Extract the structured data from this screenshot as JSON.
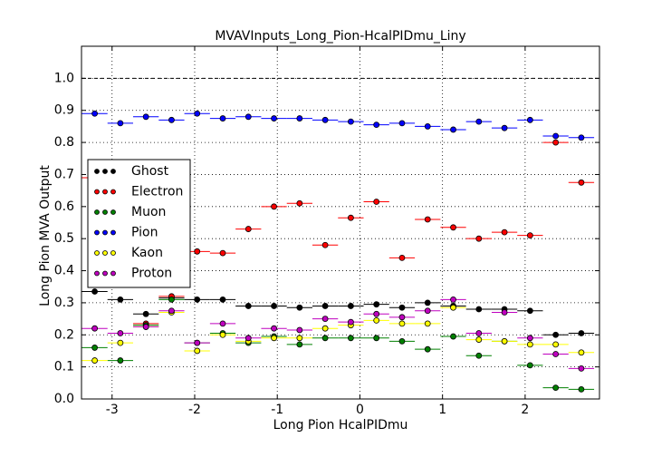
{
  "chart_data": {
    "type": "errorbar",
    "title": "MVAVInputs_Long_Pion-HcalPIDmu_Liny",
    "x_label": "Long Pion HcalPIDmu",
    "y_label": "Long Pion MVA Output",
    "x": [
      -3.21,
      -2.9,
      -2.59,
      -2.28,
      -1.97,
      -1.66,
      -1.35,
      -1.04,
      -0.73,
      -0.42,
      -0.11,
      0.2,
      0.51,
      0.82,
      1.13,
      1.44,
      1.75,
      2.06,
      2.37,
      2.68
    ],
    "xerr": 0.155,
    "series": [
      {
        "name": "Ghost",
        "color": "#000000",
        "values": [
          0.335,
          0.31,
          0.265,
          0.315,
          0.31,
          0.31,
          0.29,
          0.29,
          0.285,
          0.29,
          0.29,
          0.295,
          0.285,
          0.3,
          0.29,
          0.28,
          0.28,
          0.275,
          0.2,
          0.205
        ]
      },
      {
        "name": "Electron",
        "color": "#ff0000",
        "values": [
          0.69,
          0.62,
          0.235,
          0.32,
          0.46,
          0.455,
          0.53,
          0.6,
          0.61,
          0.48,
          0.565,
          0.615,
          0.44,
          0.56,
          0.535,
          0.5,
          0.52,
          0.51,
          0.8,
          0.675
        ]
      },
      {
        "name": "Muon",
        "color": "#008000",
        "values": [
          0.16,
          0.12,
          0.23,
          0.31,
          0.175,
          0.205,
          0.175,
          0.195,
          0.17,
          0.19,
          0.19,
          0.19,
          0.18,
          0.155,
          0.195,
          0.135,
          0.18,
          0.105,
          0.035,
          0.03
        ]
      },
      {
        "name": "Pion",
        "color": "#0000ff",
        "values": [
          0.89,
          0.86,
          0.88,
          0.87,
          0.89,
          0.875,
          0.88,
          0.875,
          0.875,
          0.87,
          0.865,
          0.855,
          0.86,
          0.85,
          0.84,
          0.865,
          0.845,
          0.87,
          0.82,
          0.815
        ]
      },
      {
        "name": "Kaon",
        "color": "#ffff00",
        "values": [
          0.12,
          0.175,
          0.225,
          0.27,
          0.15,
          0.2,
          0.18,
          0.19,
          0.19,
          0.22,
          0.23,
          0.245,
          0.235,
          0.235,
          0.285,
          0.185,
          0.18,
          0.17,
          0.17,
          0.145
        ]
      },
      {
        "name": "Proton",
        "color": "#bf00bf",
        "values": [
          0.22,
          0.205,
          0.225,
          0.275,
          0.175,
          0.235,
          0.19,
          0.22,
          0.215,
          0.25,
          0.24,
          0.265,
          0.255,
          0.275,
          0.31,
          0.205,
          0.27,
          0.19,
          0.14,
          0.095
        ]
      }
    ],
    "xlim": [
      -3.37,
      2.9
    ],
    "ylim": [
      0,
      1.1
    ],
    "xticks": [
      -3,
      -2,
      -1,
      0,
      1,
      2
    ],
    "yticks": [
      {
        "value": 0,
        "label": "0.0"
      },
      {
        "value": 0.1,
        "label": "0.1"
      },
      {
        "value": 0.2,
        "label": "0.2"
      },
      {
        "value": 0.3,
        "label": "0.3"
      },
      {
        "value": 0.4,
        "label": "0.4"
      },
      {
        "value": 0.5,
        "label": "0.5"
      },
      {
        "value": 0.6,
        "label": "0.6"
      },
      {
        "value": 0.7,
        "label": "0.7"
      },
      {
        "value": 0.8,
        "label": "0.8"
      },
      {
        "value": 0.9,
        "label": "0.9"
      },
      {
        "value": 1.0,
        "label": "1.0"
      }
    ],
    "reference_line": 1.0,
    "grid": true,
    "legend_position": "left"
  }
}
